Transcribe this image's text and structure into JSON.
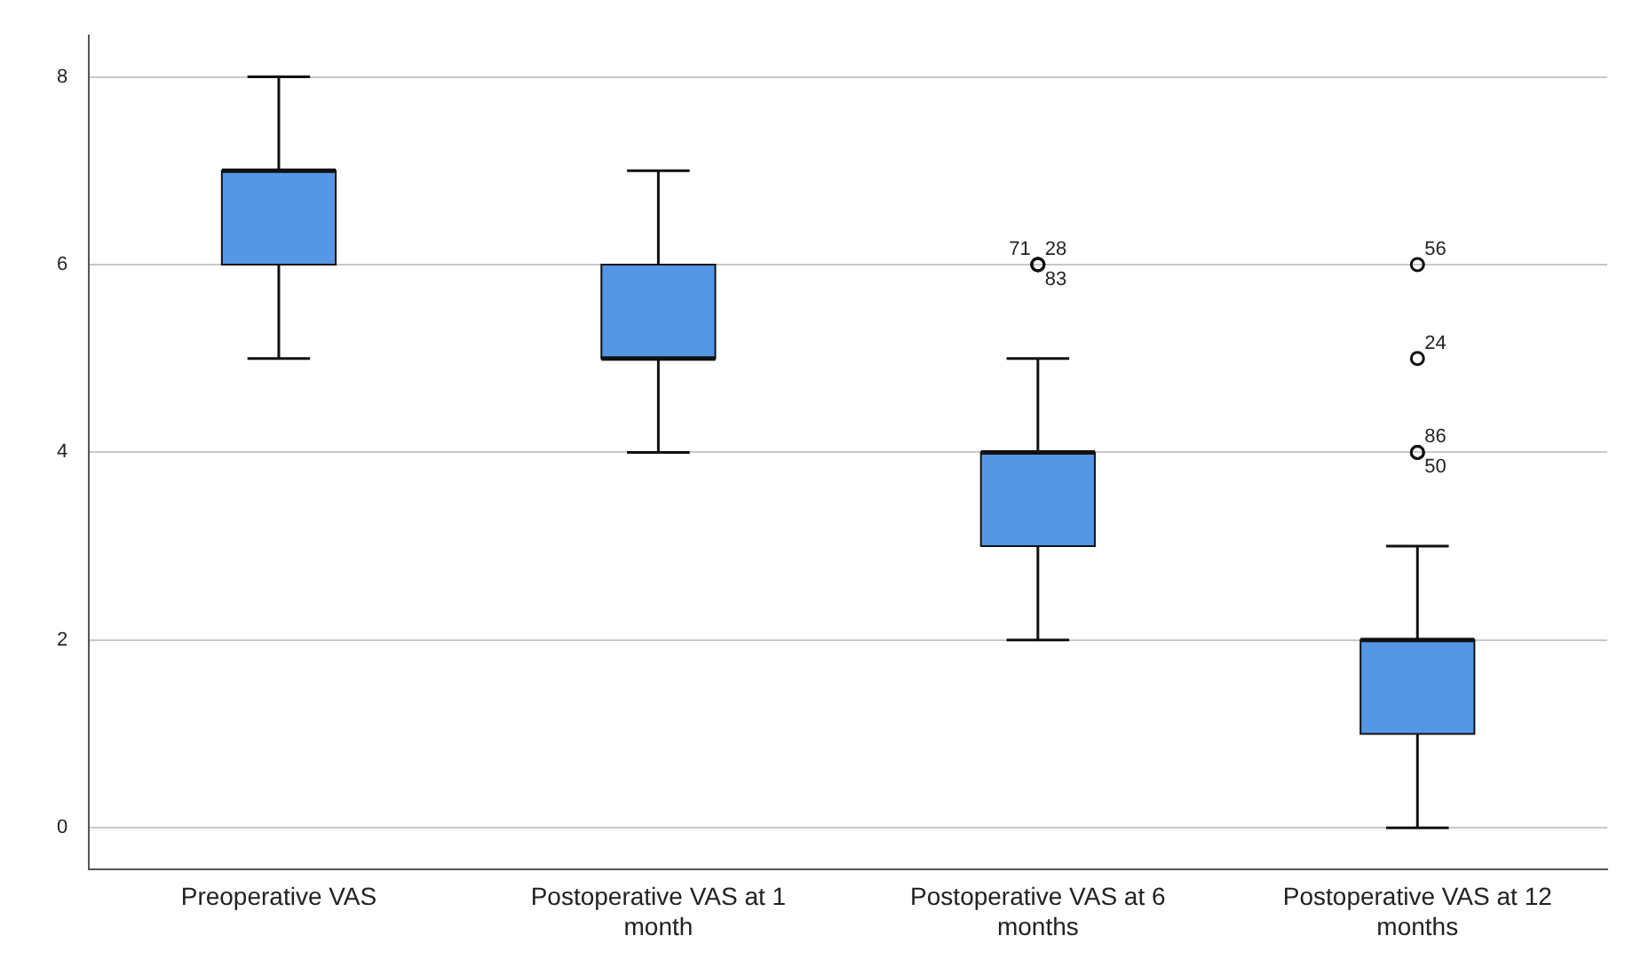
{
  "chart_data": {
    "type": "box",
    "categories": [
      "Preoperative VAS",
      "Postoperative VAS at 1 month",
      "Postoperative VAS at 6 months",
      "Postoperative VAS at 12 months"
    ],
    "boxes": [
      {
        "low": 5,
        "q1": 6,
        "median": 7,
        "q3": 7,
        "high": 8
      },
      {
        "low": 4,
        "q1": 5,
        "median": 5,
        "q3": 6,
        "high": 7
      },
      {
        "low": 2,
        "q1": 3,
        "median": 4,
        "q3": 4,
        "high": 5,
        "outliers": [
          6,
          6,
          6
        ]
      },
      {
        "low": 0,
        "q1": 1,
        "median": 2,
        "q3": 2,
        "high": 3,
        "outliers": [
          4,
          4,
          5,
          6
        ]
      }
    ],
    "color": "#5597e5",
    "ylim": [
      -0.44,
      8.44
    ],
    "yticks": [
      0,
      2,
      4,
      6,
      8
    ],
    "grid": "y",
    "legend": false,
    "annotations": [
      "28",
      "83",
      "71",
      "86",
      "50",
      "24",
      "56"
    ]
  }
}
